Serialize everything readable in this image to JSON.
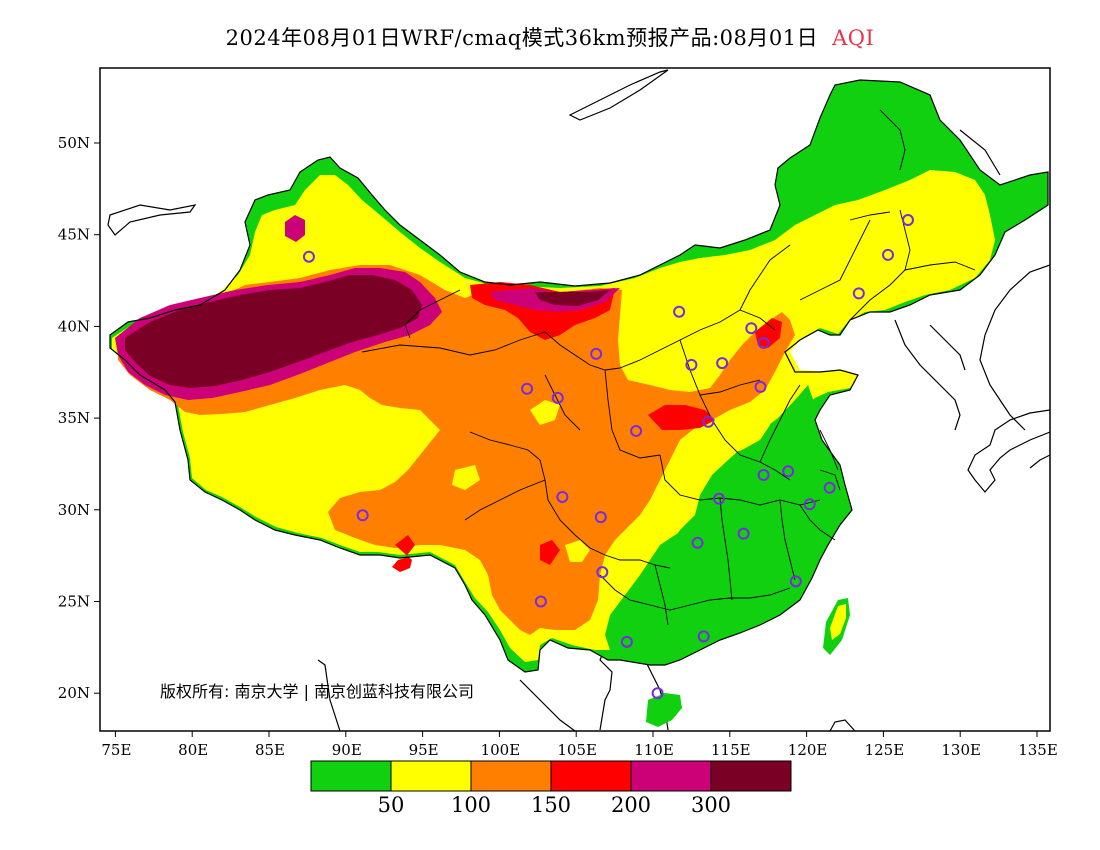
{
  "title": {
    "main": "2024年08月01日WRF/cmaq模式36km预报产品:08月01日",
    "variable": "AQI"
  },
  "copyright": "版权所有: 南京大学 | 南京创蓝科技有限公司",
  "axes": {
    "lat_labels": [
      "50N",
      "45N",
      "40N",
      "35N",
      "30N",
      "25N",
      "20N"
    ],
    "lon_labels": [
      "75E",
      "80E",
      "85E",
      "90E",
      "95E",
      "100E",
      "105E",
      "110E",
      "115E",
      "120E",
      "125E",
      "130E",
      "135E"
    ],
    "lat_values": [
      50,
      45,
      40,
      35,
      30,
      25,
      20
    ],
    "lon_values": [
      75,
      80,
      85,
      90,
      95,
      100,
      105,
      110,
      115,
      120,
      125,
      130,
      135
    ]
  },
  "legend": {
    "colors": [
      "#10d010",
      "#ffff00",
      "#ff8000",
      "#ff0000",
      "#cc0077",
      "#7a0025"
    ],
    "labels": [
      "50",
      "100",
      "150",
      "200",
      "300"
    ]
  },
  "stations": [
    [
      87.6,
      43.8
    ],
    [
      91.1,
      29.7
    ],
    [
      101.8,
      36.6
    ],
    [
      103.8,
      36.1
    ],
    [
      106.3,
      38.5
    ],
    [
      104.1,
      30.7
    ],
    [
      106.6,
      29.6
    ],
    [
      106.7,
      26.6
    ],
    [
      102.7,
      25.0
    ],
    [
      108.3,
      22.8
    ],
    [
      110.3,
      20.0
    ],
    [
      113.3,
      23.1
    ],
    [
      112.9,
      28.2
    ],
    [
      114.3,
      30.6
    ],
    [
      115.9,
      28.7
    ],
    [
      117.2,
      31.9
    ],
    [
      118.8,
      32.1
    ],
    [
      120.2,
      30.3
    ],
    [
      121.5,
      31.2
    ],
    [
      119.3,
      26.1
    ],
    [
      113.6,
      34.8
    ],
    [
      108.9,
      34.3
    ],
    [
      112.5,
      37.9
    ],
    [
      114.5,
      38.0
    ],
    [
      117.0,
      36.7
    ],
    [
      116.4,
      39.9
    ],
    [
      117.2,
      39.1
    ],
    [
      111.7,
      40.8
    ],
    [
      123.4,
      41.8
    ],
    [
      125.3,
      43.9
    ],
    [
      126.6,
      45.8
    ]
  ]
}
